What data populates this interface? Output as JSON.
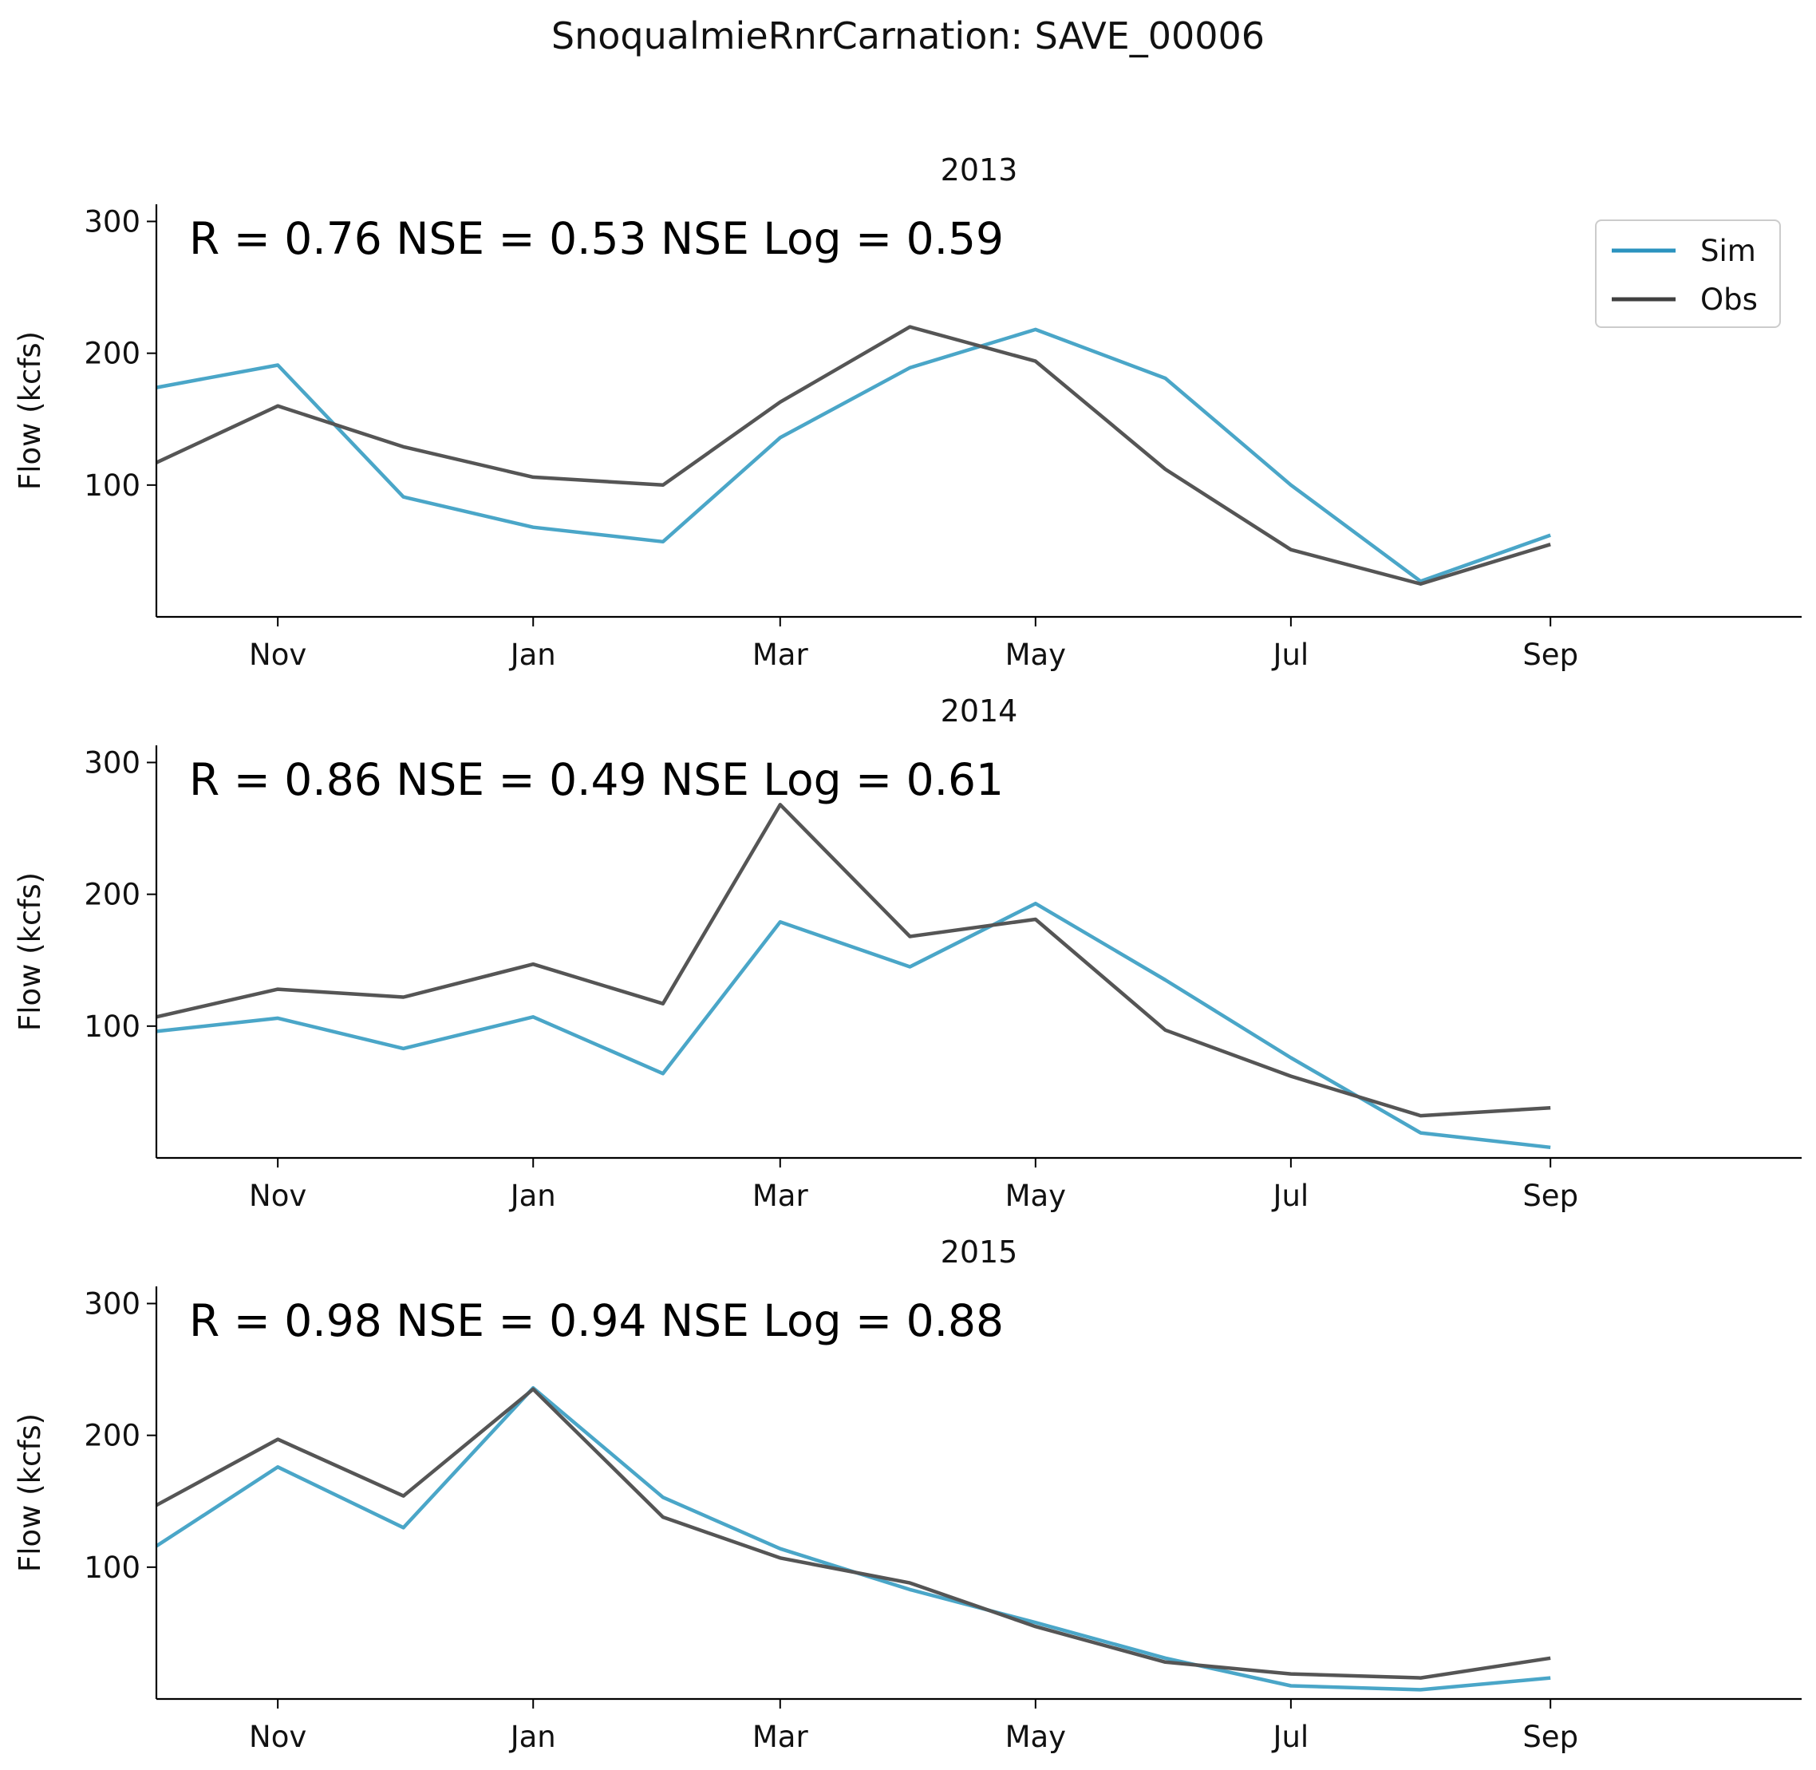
{
  "figure": {
    "title": "SnoqualmieRnrCarnation: SAVE_00006"
  },
  "colors": {
    "sim": "#4aa6c8",
    "obs": "#555555",
    "axis": "#000000",
    "legend_border": "#cccccc"
  },
  "legend": {
    "location": "top-right",
    "entries": [
      {
        "label": "Sim",
        "color": "#2b93bf"
      },
      {
        "label": "Obs",
        "color": "#404040"
      }
    ]
  },
  "chart_data": [
    {
      "type": "line",
      "title": "2013",
      "annotation": "R = 0.76  NSE = 0.53  NSE Log = 0.59",
      "ylabel": "Flow (kcfs)",
      "xlabel": "",
      "xlim": [
        "2012-10-03",
        "2013-10-31"
      ],
      "ylim": [
        0,
        313
      ],
      "yticks": [
        100,
        200,
        300
      ],
      "xticks": [
        {
          "label": "Nov",
          "date": "2012-11-01"
        },
        {
          "label": "Jan",
          "date": "2013-01-01"
        },
        {
          "label": "Mar",
          "date": "2013-03-01"
        },
        {
          "label": "May",
          "date": "2013-05-01"
        },
        {
          "label": "Jul",
          "date": "2013-07-01"
        },
        {
          "label": "Sep",
          "date": "2013-09-01"
        }
      ],
      "grid": false,
      "legend": true,
      "series": [
        {
          "name": "Sim",
          "x": [
            "2012-10-03",
            "2012-11-01",
            "2012-12-01",
            "2013-01-01",
            "2013-02-01",
            "2013-03-01",
            "2013-04-01",
            "2013-05-01",
            "2013-06-01",
            "2013-07-01",
            "2013-08-01",
            "2013-09-01"
          ],
          "y": [
            174,
            191,
            91,
            68,
            57,
            136,
            189,
            218,
            181,
            100,
            27,
            62
          ]
        },
        {
          "name": "Obs",
          "x": [
            "2012-10-03",
            "2012-11-01",
            "2012-12-01",
            "2013-01-01",
            "2013-02-01",
            "2013-03-01",
            "2013-04-01",
            "2013-05-01",
            "2013-06-01",
            "2013-07-01",
            "2013-08-01",
            "2013-09-01"
          ],
          "y": [
            117,
            160,
            129,
            106,
            100,
            163,
            220,
            194,
            112,
            51,
            25,
            55
          ]
        }
      ]
    },
    {
      "type": "line",
      "title": "2014",
      "annotation": "R = 0.86  NSE = 0.49  NSE Log = 0.61",
      "ylabel": "Flow (kcfs)",
      "xlabel": "",
      "xlim": [
        "2013-10-03",
        "2014-10-31"
      ],
      "ylim": [
        0,
        313
      ],
      "yticks": [
        100,
        200,
        300
      ],
      "xticks": [
        {
          "label": "Nov",
          "date": "2013-11-01"
        },
        {
          "label": "Jan",
          "date": "2014-01-01"
        },
        {
          "label": "Mar",
          "date": "2014-03-01"
        },
        {
          "label": "May",
          "date": "2014-05-01"
        },
        {
          "label": "Jul",
          "date": "2014-07-01"
        },
        {
          "label": "Sep",
          "date": "2014-09-01"
        }
      ],
      "grid": false,
      "legend": false,
      "series": [
        {
          "name": "Sim",
          "x": [
            "2013-10-03",
            "2013-11-01",
            "2013-12-01",
            "2014-01-01",
            "2014-02-01",
            "2014-03-01",
            "2014-04-01",
            "2014-05-01",
            "2014-06-01",
            "2014-07-01",
            "2014-08-01",
            "2014-09-01"
          ],
          "y": [
            96,
            106,
            83,
            107,
            64,
            179,
            145,
            193,
            135,
            76,
            19,
            8
          ]
        },
        {
          "name": "Obs",
          "x": [
            "2013-10-03",
            "2013-11-01",
            "2013-12-01",
            "2014-01-01",
            "2014-02-01",
            "2014-03-01",
            "2014-04-01",
            "2014-05-01",
            "2014-06-01",
            "2014-07-01",
            "2014-08-01",
            "2014-09-01"
          ],
          "y": [
            107,
            128,
            122,
            147,
            117,
            268,
            168,
            181,
            97,
            62,
            32,
            38
          ]
        }
      ]
    },
    {
      "type": "line",
      "title": "2015",
      "annotation": "R = 0.98  NSE = 0.94  NSE Log = 0.88",
      "ylabel": "Flow (kcfs)",
      "xlabel": "",
      "xlim": [
        "2014-10-03",
        "2015-10-31"
      ],
      "ylim": [
        0,
        313
      ],
      "yticks": [
        100,
        200,
        300
      ],
      "xticks": [
        {
          "label": "Nov",
          "date": "2014-11-01"
        },
        {
          "label": "Jan",
          "date": "2015-01-01"
        },
        {
          "label": "Mar",
          "date": "2015-03-01"
        },
        {
          "label": "May",
          "date": "2015-05-01"
        },
        {
          "label": "Jul",
          "date": "2015-07-01"
        },
        {
          "label": "Sep",
          "date": "2015-09-01"
        }
      ],
      "grid": false,
      "legend": false,
      "series": [
        {
          "name": "Sim",
          "x": [
            "2014-10-03",
            "2014-11-01",
            "2014-12-01",
            "2015-01-01",
            "2015-02-01",
            "2015-03-01",
            "2015-04-01",
            "2015-05-01",
            "2015-06-01",
            "2015-07-01",
            "2015-08-01",
            "2015-09-01"
          ],
          "y": [
            116,
            176,
            130,
            236,
            153,
            114,
            83,
            58,
            31,
            10,
            7,
            16
          ]
        },
        {
          "name": "Obs",
          "x": [
            "2014-10-03",
            "2014-11-01",
            "2014-12-01",
            "2015-01-01",
            "2015-02-01",
            "2015-03-01",
            "2015-04-01",
            "2015-05-01",
            "2015-06-01",
            "2015-07-01",
            "2015-08-01",
            "2015-09-01"
          ],
          "y": [
            147,
            197,
            154,
            235,
            138,
            107,
            88,
            55,
            28,
            19,
            16,
            31
          ]
        }
      ]
    }
  ]
}
